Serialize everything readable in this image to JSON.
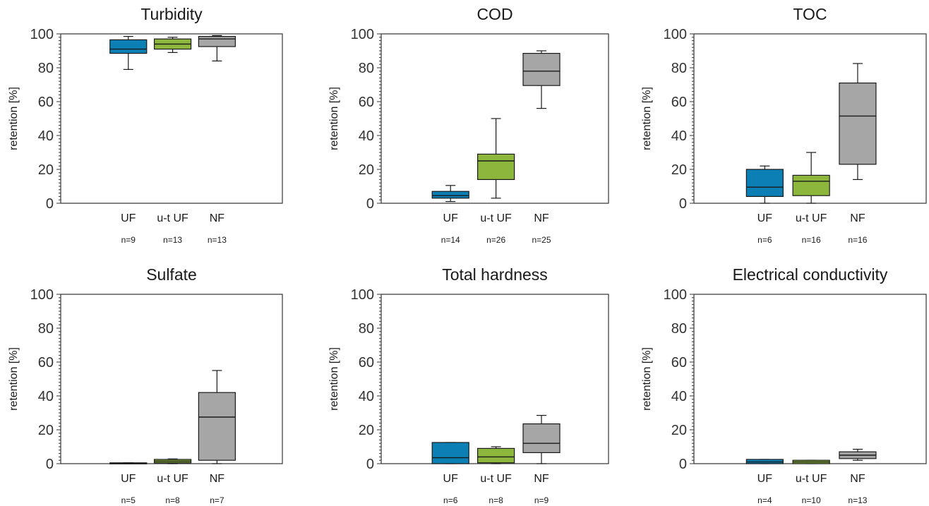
{
  "colors": {
    "UF": "#0c7fb5",
    "u-t UF": "#8db63c",
    "NF": "#a6a6a6",
    "frame": "#333333",
    "median": "#1a1a1a"
  },
  "chart_data": [
    {
      "type": "box",
      "title": "Turbidity",
      "ylabel": "retention [%]",
      "ylim": [
        0,
        100
      ],
      "yticks": [
        "0",
        "20",
        "40",
        "60",
        "80",
        "100"
      ],
      "categories": [
        "UF",
        "u-t UF",
        "NF"
      ],
      "counts": [
        "n=9",
        "n=13",
        "n=13"
      ],
      "series": [
        {
          "category": "UF",
          "min": 79,
          "q1": 88.5,
          "median": 91,
          "q3": 96.5,
          "max": 98.5
        },
        {
          "category": "u-t UF",
          "min": 89,
          "q1": 91,
          "median": 94,
          "q3": 97,
          "max": 98
        },
        {
          "category": "NF",
          "min": 84,
          "q1": 92.5,
          "median": 97,
          "q3": 98.5,
          "max": 99
        }
      ]
    },
    {
      "type": "box",
      "title": "COD",
      "ylabel": "retention [%]",
      "ylim": [
        0,
        100
      ],
      "yticks": [
        "0",
        "20",
        "40",
        "60",
        "80",
        "100"
      ],
      "categories": [
        "UF",
        "u-t UF",
        "NF"
      ],
      "counts": [
        "n=14",
        "n=26",
        "n=25"
      ],
      "series": [
        {
          "category": "UF",
          "min": 1,
          "q1": 3,
          "median": 4.5,
          "q3": 7,
          "max": 10.5
        },
        {
          "category": "u-t UF",
          "min": 3,
          "q1": 14,
          "median": 25,
          "q3": 29,
          "max": 50
        },
        {
          "category": "NF",
          "min": 56,
          "q1": 69.5,
          "median": 78,
          "q3": 88.5,
          "max": 90
        }
      ]
    },
    {
      "type": "box",
      "title": "TOC",
      "ylabel": "retention [%]",
      "ylim": [
        0,
        100
      ],
      "yticks": [
        "0",
        "20",
        "40",
        "60",
        "80",
        "100"
      ],
      "categories": [
        "UF",
        "u-t UF",
        "NF"
      ],
      "counts": [
        "n=6",
        "n=16",
        "n=16"
      ],
      "series": [
        {
          "category": "UF",
          "min": 0,
          "q1": 4,
          "median": 9.5,
          "q3": 20,
          "max": 22
        },
        {
          "category": "u-t UF",
          "min": 0,
          "q1": 4.5,
          "median": 13,
          "q3": 16.5,
          "max": 30
        },
        {
          "category": "NF",
          "min": 14,
          "q1": 23,
          "median": 51.5,
          "q3": 71,
          "max": 82.5
        }
      ]
    },
    {
      "type": "box",
      "title": "Sulfate",
      "ylabel": "retention [%]",
      "ylim": [
        0,
        100
      ],
      "yticks": [
        "0",
        "20",
        "40",
        "60",
        "80",
        "100"
      ],
      "categories": [
        "UF",
        "u-t UF",
        "NF"
      ],
      "counts": [
        "n=5",
        "n=8",
        "n=7"
      ],
      "series": [
        {
          "category": "UF",
          "min": 0,
          "q1": 0,
          "median": 0.2,
          "q3": 0.5,
          "max": 0.5
        },
        {
          "category": "u-t UF",
          "min": 0,
          "q1": 0.5,
          "median": 1.5,
          "q3": 2.5,
          "max": 2.8
        },
        {
          "category": "NF",
          "min": 0,
          "q1": 2,
          "median": 27.5,
          "q3": 42,
          "max": 55
        }
      ]
    },
    {
      "type": "box",
      "title": "Total hardness",
      "ylabel": "retention [%]",
      "ylim": [
        0,
        100
      ],
      "yticks": [
        "0",
        "20",
        "40",
        "60",
        "80",
        "100"
      ],
      "categories": [
        "UF",
        "u-t UF",
        "NF"
      ],
      "counts": [
        "n=6",
        "n=8",
        "n=9"
      ],
      "series": [
        {
          "category": "UF",
          "min": 0,
          "q1": 0,
          "median": 3.5,
          "q3": 12.5,
          "max": 12.5
        },
        {
          "category": "u-t UF",
          "min": 0,
          "q1": 0.5,
          "median": 4,
          "q3": 9,
          "max": 10
        },
        {
          "category": "NF",
          "min": 0,
          "q1": 6.5,
          "median": 12,
          "q3": 23.5,
          "max": 28.5
        }
      ]
    },
    {
      "type": "box",
      "title": "Electrical conductivity",
      "ylabel": "retention [%]",
      "ylim": [
        0,
        100
      ],
      "yticks": [
        "0",
        "20",
        "40",
        "60",
        "80",
        "100"
      ],
      "categories": [
        "UF",
        "u-t UF",
        "NF"
      ],
      "counts": [
        "n=4",
        "n=10",
        "n=13"
      ],
      "series": [
        {
          "category": "UF",
          "min": 0,
          "q1": 0,
          "median": 1,
          "q3": 2.5,
          "max": 2.5
        },
        {
          "category": "u-t UF",
          "min": 0,
          "q1": 0,
          "median": 1,
          "q3": 2,
          "max": 2
        },
        {
          "category": "NF",
          "min": 2,
          "q1": 3,
          "median": 5,
          "q3": 7,
          "max": 8.5
        }
      ]
    }
  ]
}
